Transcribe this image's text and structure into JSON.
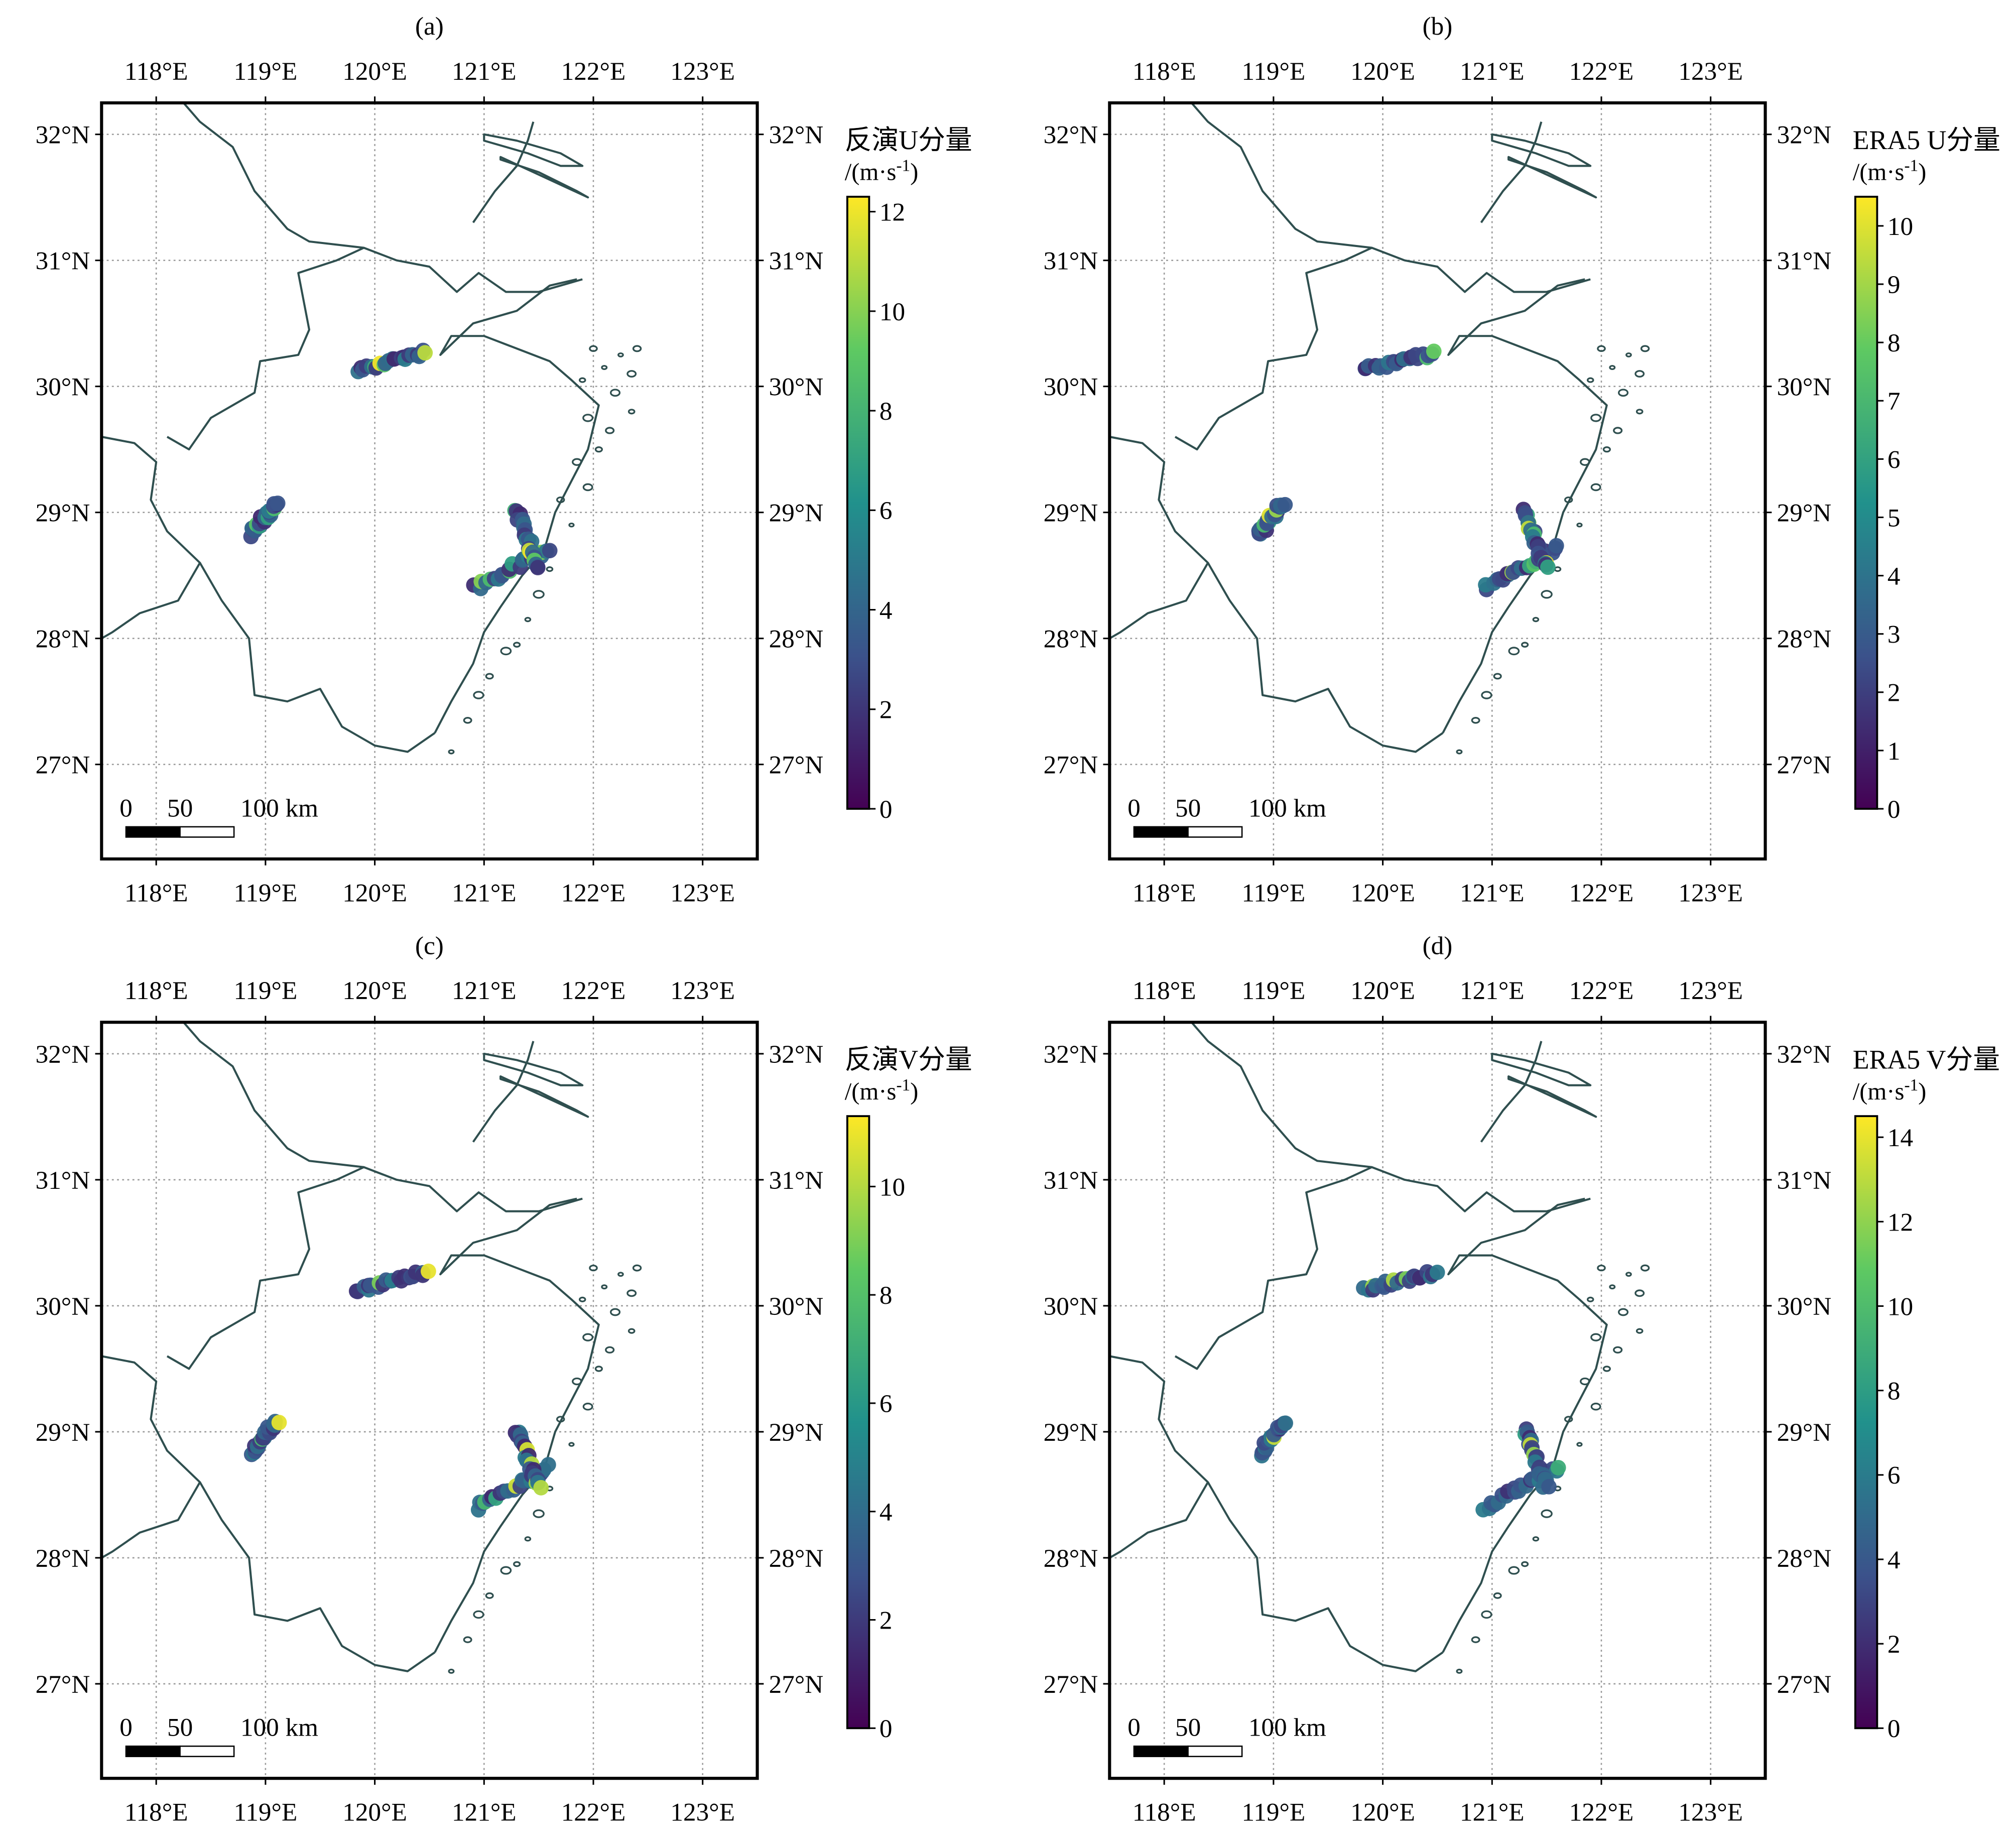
{
  "figure": {
    "panels": [
      {
        "letter": "(a)",
        "cbar_title": "反演U分量",
        "cbar_unit_main": "/(m·s",
        "cbar_unit_exp": "-1",
        "cbar_unit_close": ")",
        "cbar_ticks": [
          0,
          2,
          4,
          6,
          8,
          10,
          12
        ],
        "cbar_range": [
          0,
          12.3
        ],
        "field": "u"
      },
      {
        "letter": "(b)",
        "cbar_title": "ERA5 U分量",
        "cbar_unit_main": "/(m·s",
        "cbar_unit_exp": "-1",
        "cbar_unit_close": ")",
        "cbar_ticks": [
          0,
          1,
          2,
          3,
          4,
          5,
          6,
          7,
          8,
          9,
          10
        ],
        "cbar_range": [
          0,
          10.5
        ],
        "field": "u"
      },
      {
        "letter": "(c)",
        "cbar_title": "反演V分量",
        "cbar_unit_main": "/(m·s",
        "cbar_unit_exp": "-1",
        "cbar_unit_close": ")",
        "cbar_ticks": [
          0,
          2,
          4,
          6,
          8,
          10
        ],
        "cbar_range": [
          0,
          11.3
        ],
        "field": "v"
      },
      {
        "letter": "(d)",
        "cbar_title": "ERA5 V分量",
        "cbar_unit_main": "/(m·s",
        "cbar_unit_exp": "-1",
        "cbar_unit_close": ")",
        "cbar_ticks": [
          0,
          2,
          4,
          6,
          8,
          10,
          12,
          14
        ],
        "cbar_range": [
          0,
          14.5
        ],
        "field": "v"
      }
    ],
    "lon_ticks": [
      "118°E",
      "119°E",
      "120°E",
      "121°E",
      "122°E",
      "123°E"
    ],
    "lat_ticks": [
      "32°N",
      "31°N",
      "30°N",
      "29°N",
      "28°N",
      "27°N"
    ],
    "scalebar": {
      "label_0": "0",
      "label_50": "50",
      "label_100": "100 km"
    },
    "colormap": [
      "#440154",
      "#3b528b",
      "#21918c",
      "#5ec962",
      "#fde725"
    ],
    "colormap_style": "viridis",
    "coastline_color": "#2f4f4f",
    "gridline_style": "dotted gray"
  },
  "chart_data": {
    "type": "scatter",
    "x_axis": {
      "label": "longitude",
      "range": [
        117.5,
        123.5
      ],
      "ticks": [
        118,
        119,
        120,
        121,
        122,
        123
      ],
      "unit": "°E"
    },
    "y_axis": {
      "label": "latitude",
      "range": [
        26.25,
        32.25
      ],
      "ticks": [
        27,
        28,
        29,
        30,
        31,
        32
      ],
      "unit": "°N"
    },
    "tracks": [
      {
        "from": [
          119.83,
          30.13
        ],
        "to": [
          120.48,
          30.27
        ]
      },
      {
        "from": [
          118.87,
          28.83
        ],
        "to": [
          119.1,
          29.08
        ]
      },
      {
        "from": [
          120.93,
          28.4
        ],
        "to": [
          121.6,
          28.72
        ]
      },
      {
        "from": [
          121.3,
          29.02
        ],
        "to": [
          121.5,
          28.55
        ]
      }
    ],
    "grid": true
  }
}
